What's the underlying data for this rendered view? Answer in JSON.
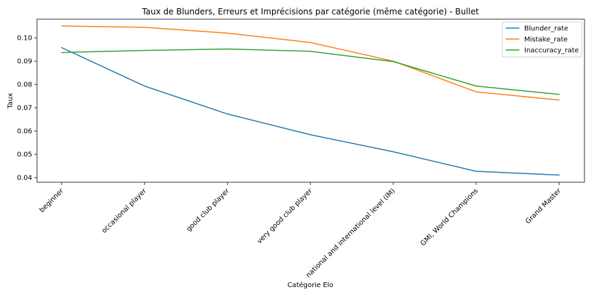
{
  "chart_data": {
    "type": "line",
    "title": "Taux de Blunders, Erreurs et Imprécisions par catégorie (même catégorie) - Bullet",
    "xlabel": "Catégorie Elo",
    "ylabel": "Taux",
    "categories": [
      "beginner",
      "occasional player",
      "good club player",
      "very good club player",
      "national and international level (IM)",
      "GMI, World Champions",
      "Grand Master"
    ],
    "series": [
      {
        "name": "Blunder_rate",
        "color": "#1f77b4",
        "values": [
          0.0958,
          0.0793,
          0.0673,
          0.0584,
          0.0511,
          0.0427,
          0.0411
        ]
      },
      {
        "name": "Mistake_rate",
        "color": "#ff7f0e",
        "values": [
          0.1051,
          0.1045,
          0.102,
          0.098,
          0.09,
          0.0768,
          0.0733
        ]
      },
      {
        "name": "Inaccuracy_rate",
        "color": "#2ca02c",
        "values": [
          0.0937,
          0.0946,
          0.0952,
          0.0942,
          0.0898,
          0.0793,
          0.0757
        ]
      }
    ],
    "yticks": [
      "0.04",
      "0.05",
      "0.06",
      "0.07",
      "0.08",
      "0.09",
      "0.10"
    ],
    "ylim": [
      0.038,
      0.108
    ],
    "legend_position": "top-right",
    "grid": false
  }
}
